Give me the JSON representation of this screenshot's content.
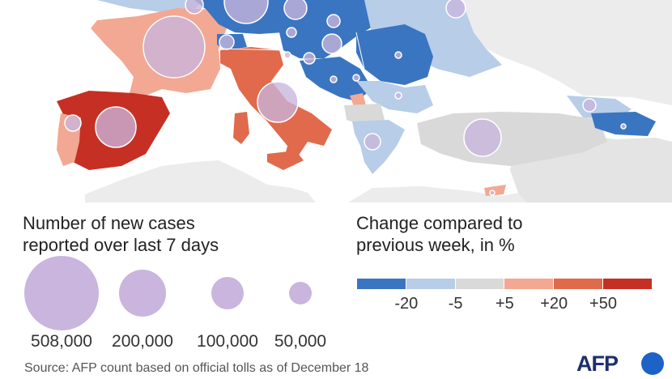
{
  "size_legend": {
    "title_line1": "Number of new cases",
    "title_line2": "reported over last 7 days",
    "items": [
      {
        "label": "508,000",
        "value": 508000
      },
      {
        "label": "200,000",
        "value": 200000
      },
      {
        "label": "100,000",
        "value": 100000
      },
      {
        "label": "50,000",
        "value": 50000
      }
    ],
    "bubble_color": "#c9b5dd"
  },
  "color_legend": {
    "title_line1": "Change compared to",
    "title_line2": "previous week, in %",
    "ticks": [
      "-20",
      "-5",
      "+5",
      "+20",
      "+50"
    ],
    "colors": [
      "#3a75c1",
      "#b7cde8",
      "#d9d9d9",
      "#f2a893",
      "#e06a4b",
      "#c62f23"
    ]
  },
  "source": "Source: AFP count based on official tolls as of December 18",
  "logo": {
    "text": "AFP"
  },
  "map": {
    "sea_color": "#ffffff",
    "land_neutral_color": "#ececec"
  }
}
